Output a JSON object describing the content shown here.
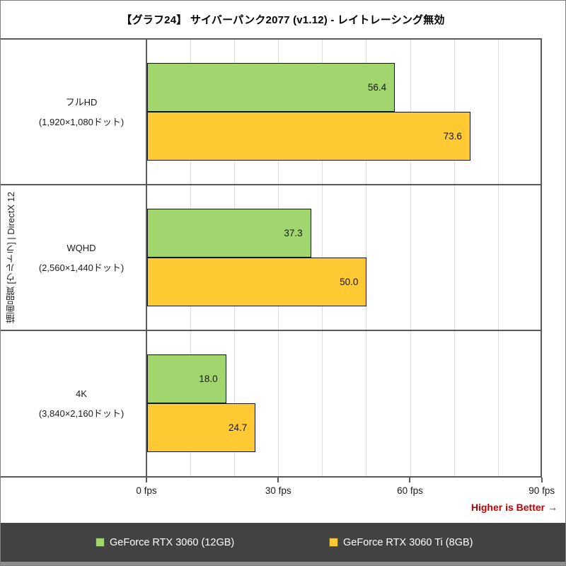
{
  "title": "【グラフ24】 サイバーパンク2077 (v1.12) - レイトレーシング無効",
  "chart_data": {
    "type": "bar",
    "orientation": "horizontal",
    "title": "【グラフ24】 サイバーパンク2077 (v1.12) - レイトレーシング無効",
    "y_axis_title": "描画品質 [ウルトラ] | DirectX 12",
    "categories": [
      {
        "line1": "フルHD",
        "line2": "(1,920×1,080ドット)"
      },
      {
        "line1": "WQHD",
        "line2": "(2,560×1,440ドット)"
      },
      {
        "line1": "4K",
        "line2": "(3,840×2,160ドット)"
      }
    ],
    "series": [
      {
        "name": "GeForce RTX 3060 (12GB)",
        "color": "#A3D56E",
        "values": [
          56.4,
          37.3,
          18.0
        ],
        "value_labels": [
          "56.4",
          "37.3",
          "18.0"
        ]
      },
      {
        "name": "GeForce RTX 3060 Ti (8GB)",
        "color": "#FFC933",
        "values": [
          73.6,
          50.0,
          24.7
        ],
        "value_labels": [
          "73.6",
          "50.0",
          "24.7"
        ]
      }
    ],
    "x_axis": {
      "tick_labels": [
        "0 fps",
        "30 fps",
        "60 fps",
        "90 fps"
      ],
      "tick_values": [
        0,
        30,
        60,
        90
      ],
      "max": 90,
      "gridline_interval_fps": 10,
      "grid": true,
      "unit": "fps"
    },
    "legend_position": "bottom",
    "footer_note": "Higher is Better →",
    "footer_note_color": "#C00000"
  }
}
